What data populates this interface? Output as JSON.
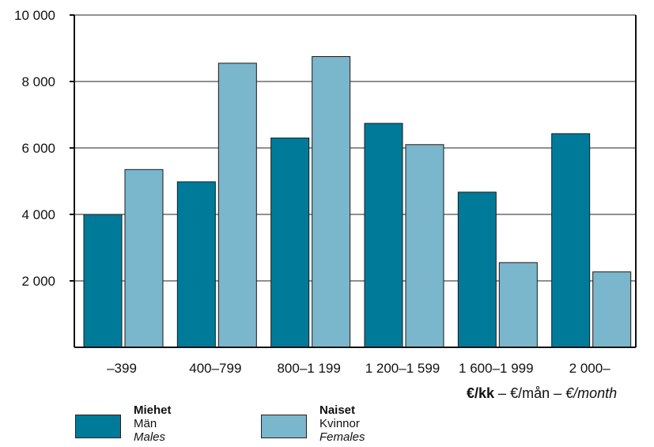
{
  "chart_data": {
    "type": "bar",
    "categories": [
      "–399",
      "400–799",
      "800–1 199",
      "1 200–1 599",
      "1 600–1 999",
      "2 000–"
    ],
    "series": [
      {
        "name": "Miehet",
        "values": [
          4000,
          4980,
          6300,
          6740,
          4670,
          6430
        ],
        "color": "#007a99"
      },
      {
        "name": "Naiset",
        "values": [
          5350,
          8550,
          8750,
          6100,
          2550,
          2270
        ],
        "color": "#7ab6cc"
      }
    ],
    "ylim": [
      0,
      10000
    ],
    "yticks": [
      2000,
      4000,
      6000,
      8000,
      10000
    ],
    "ytick_labels": [
      "2 000",
      "4 000",
      "6 000",
      "8 000",
      "10 000"
    ],
    "grid": true,
    "unit_label": {
      "bold": "€/kk",
      "sep1": " – ",
      "plain": "€/mån",
      "sep2": " – ",
      "italic": "€/month"
    },
    "legend": [
      {
        "fi": "Miehet",
        "sv": "Män",
        "en": "Males",
        "color": "#007a99"
      },
      {
        "fi": "Naiset",
        "sv": "Kvinnor",
        "en": "Females",
        "color": "#7ab6cc"
      }
    ]
  }
}
